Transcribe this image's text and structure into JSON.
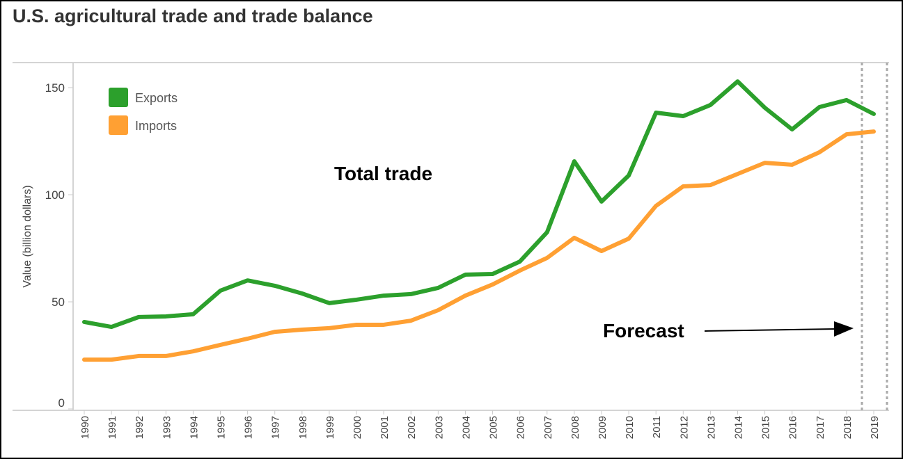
{
  "chart_data": {
    "type": "line",
    "title": "U.S. agricultural trade and trade balance",
    "subtitle": "Total trade",
    "xlabel": "",
    "ylabel": "Value (billion dollars)",
    "ylim": [
      0,
      160
    ],
    "yticks": [
      0,
      50,
      100,
      150
    ],
    "grid": false,
    "legend_position": "top-left",
    "x": [
      1990,
      1991,
      1992,
      1993,
      1994,
      1995,
      1996,
      1997,
      1998,
      1999,
      2000,
      2001,
      2002,
      2003,
      2004,
      2005,
      2006,
      2007,
      2008,
      2009,
      2010,
      2011,
      2012,
      2013,
      2014,
      2015,
      2016,
      2017,
      2018,
      2019
    ],
    "series": [
      {
        "name": "Exports",
        "color": "#2ca02c",
        "values": [
          40.6,
          38.3,
          42.9,
          43.2,
          44.2,
          55.2,
          60.0,
          57.5,
          53.9,
          49.4,
          51.0,
          52.9,
          53.6,
          56.5,
          62.7,
          63.0,
          68.8,
          82.5,
          115.6,
          96.8,
          109.0,
          138.3,
          136.7,
          141.9,
          152.9,
          140.6,
          130.5,
          140.9,
          144.2,
          137.7
        ]
      },
      {
        "name": "Imports",
        "color": "#ffa033",
        "values": [
          23.0,
          23.0,
          24.7,
          24.7,
          26.9,
          29.9,
          32.8,
          36.0,
          37.0,
          37.7,
          39.3,
          39.3,
          41.2,
          46.1,
          52.9,
          58.1,
          64.6,
          70.5,
          79.9,
          73.7,
          79.5,
          94.8,
          103.9,
          104.5,
          109.7,
          114.9,
          114.0,
          119.8,
          128.2,
          129.5
        ]
      }
    ],
    "annotations": [
      {
        "text": "Forecast",
        "target": 2019
      }
    ]
  }
}
